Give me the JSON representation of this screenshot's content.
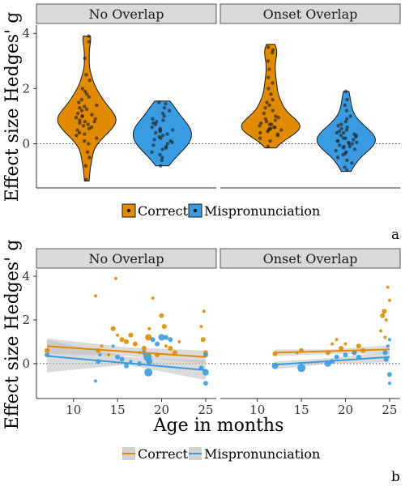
{
  "chart_data": [
    {
      "type": "violin",
      "panel_tag": "a",
      "ylabel": "Effect size Hedges' g",
      "facets": [
        "No Overlap",
        "Onset Overlap"
      ],
      "categories": [
        "Correct",
        "Mispronunciation"
      ],
      "ylim": [
        -1.6,
        4.3
      ],
      "yticks": [
        0,
        2,
        4
      ],
      "reference_line": 0,
      "legend": [
        "Correct",
        "Mispronunciation"
      ],
      "colors": {
        "Correct": "#E08B00",
        "Mispronunciation": "#3B9BE0"
      },
      "series": [
        {
          "facet": "No Overlap",
          "category": "Correct",
          "violin_range": [
            -1.35,
            3.9
          ],
          "points": [
            3.9,
            3.7,
            3.1,
            2.5,
            2.3,
            2.0,
            1.9,
            1.8,
            1.7,
            1.6,
            1.5,
            1.4,
            1.35,
            1.3,
            1.25,
            1.2,
            1.1,
            1.05,
            1.0,
            1.0,
            0.95,
            0.9,
            0.85,
            0.8,
            0.8,
            0.75,
            0.7,
            0.65,
            0.6,
            0.55,
            0.5,
            0.4,
            0.35,
            0.3,
            0.2,
            0.1,
            0.0,
            -0.3,
            -0.5,
            -0.8,
            -1.3
          ]
        },
        {
          "facet": "No Overlap",
          "category": "Mispronunciation",
          "violin_range": [
            -0.8,
            1.55
          ],
          "points": [
            1.5,
            1.45,
            1.3,
            1.2,
            1.1,
            1.0,
            0.9,
            0.85,
            0.8,
            0.75,
            0.7,
            0.6,
            0.55,
            0.5,
            0.5,
            0.45,
            0.4,
            0.35,
            0.3,
            0.25,
            0.2,
            0.15,
            0.1,
            0.05,
            0.0,
            -0.05,
            -0.1,
            -0.15,
            -0.2,
            -0.3,
            -0.4,
            -0.5,
            -0.6,
            -0.8
          ]
        },
        {
          "facet": "Onset Overlap",
          "category": "Correct",
          "violin_range": [
            -0.15,
            3.6
          ],
          "points": [
            3.5,
            3.4,
            3.3,
            3.0,
            2.7,
            2.4,
            2.2,
            2.0,
            1.8,
            1.6,
            1.5,
            1.4,
            1.3,
            1.2,
            1.1,
            1.0,
            0.95,
            0.9,
            0.85,
            0.8,
            0.75,
            0.7,
            0.7,
            0.65,
            0.6,
            0.6,
            0.55,
            0.55,
            0.5,
            0.5,
            0.45,
            0.4,
            0.35,
            0.3,
            0.2,
            0.1,
            -0.1
          ]
        },
        {
          "facet": "Onset Overlap",
          "category": "Mispronunciation",
          "violin_range": [
            -1.0,
            1.9
          ],
          "points": [
            1.9,
            1.6,
            1.4,
            1.2,
            1.0,
            0.9,
            0.8,
            0.7,
            0.65,
            0.6,
            0.55,
            0.5,
            0.45,
            0.4,
            0.4,
            0.35,
            0.3,
            0.3,
            0.25,
            0.2,
            0.2,
            0.15,
            0.1,
            0.1,
            0.05,
            0.05,
            0.0,
            0.0,
            -0.05,
            -0.1,
            -0.1,
            -0.15,
            -0.2,
            -0.25,
            -0.3,
            -0.35,
            -0.4,
            -0.5,
            -0.6,
            -0.7,
            -0.85,
            -0.95
          ]
        }
      ]
    },
    {
      "type": "scatter",
      "panel_tag": "b",
      "xlabel": "Age in months",
      "ylabel": "Effect size Hedges' g",
      "facets": [
        "No Overlap",
        "Onset Overlap"
      ],
      "xlim": [
        5.8,
        26.2
      ],
      "xticks": [
        10,
        15,
        20,
        25
      ],
      "ylim": [
        -1.6,
        4.3
      ],
      "yticks": [
        0,
        2,
        4
      ],
      "reference_line": 0,
      "legend": [
        "Correct",
        "Mispronunciation"
      ],
      "colors": {
        "Correct": "#E08B00",
        "Mispronunciation": "#3B9BE0",
        "ribbon": "#BDBDBD"
      },
      "series": [
        {
          "facet": "No Overlap",
          "name": "Correct",
          "trend": [
            [
              7,
              0.8
            ],
            [
              25,
              0.3
            ]
          ],
          "ribbon": [
            [
              7,
              0.45,
              1.15
            ],
            [
              16,
              0.35,
              0.75
            ],
            [
              25,
              0.0,
              0.6
            ]
          ],
          "points": [
            [
              7,
              0.6,
              3
            ],
            [
              12.5,
              3.1,
              2
            ],
            [
              12.8,
              0.6,
              3
            ],
            [
              13.2,
              0.8,
              2
            ],
            [
              14,
              0.4,
              2
            ],
            [
              14.5,
              1.6,
              3
            ],
            [
              14.8,
              3.9,
              2
            ],
            [
              15,
              1.3,
              2
            ],
            [
              15.5,
              1.1,
              3
            ],
            [
              16,
              1.0,
              3
            ],
            [
              16.5,
              1.3,
              3
            ],
            [
              17,
              0.9,
              3
            ],
            [
              17.5,
              0.5,
              2
            ],
            [
              18,
              0.7,
              3
            ],
            [
              18.5,
              1.2,
              4
            ],
            [
              18.6,
              1.6,
              2
            ],
            [
              19,
              3.0,
              2
            ],
            [
              19.5,
              0.4,
              3
            ],
            [
              20,
              2.2,
              3
            ],
            [
              20.3,
              1.7,
              3
            ],
            [
              20.5,
              0.8,
              2
            ],
            [
              21,
              0.7,
              3
            ],
            [
              21.5,
              0.5,
              3
            ],
            [
              22,
              1.0,
              2
            ],
            [
              24.5,
              1.7,
              2
            ],
            [
              24.7,
              1.1,
              3
            ],
            [
              25,
              0.5,
              3
            ],
            [
              24.8,
              2.4,
              2
            ]
          ]
        },
        {
          "facet": "No Overlap",
          "name": "Mispronunciation",
          "trend": [
            [
              7,
              0.35
            ],
            [
              25,
              -0.3
            ]
          ],
          "ribbon": [
            [
              7,
              -0.4,
              1.1
            ],
            [
              16,
              -0.05,
              0.3
            ],
            [
              25,
              -0.75,
              0.15
            ]
          ],
          "points": [
            [
              7,
              0.4,
              3
            ],
            [
              12.5,
              -0.8,
              2
            ],
            [
              12.8,
              0.1,
              3
            ],
            [
              13,
              0.4,
              2
            ],
            [
              14.5,
              0.8,
              2
            ],
            [
              15,
              0.3,
              3
            ],
            [
              15.5,
              0.2,
              3
            ],
            [
              16,
              -0.1,
              3
            ],
            [
              16.5,
              0.1,
              2
            ],
            [
              17.5,
              0.0,
              3
            ],
            [
              18,
              0.5,
              3
            ],
            [
              18.4,
              0.3,
              5
            ],
            [
              18.5,
              -0.4,
              5
            ],
            [
              18.6,
              0.1,
              4
            ],
            [
              19,
              1.1,
              3
            ],
            [
              19.5,
              0.9,
              3
            ],
            [
              20,
              1.2,
              4
            ],
            [
              20.5,
              1.2,
              3
            ],
            [
              21,
              1.1,
              3
            ],
            [
              24.5,
              -0.2,
              3
            ],
            [
              25,
              -0.4,
              4
            ],
            [
              25,
              0.4,
              3
            ],
            [
              25,
              -0.9,
              3
            ]
          ]
        },
        {
          "facet": "Onset Overlap",
          "name": "Correct",
          "trend": [
            [
              12,
              0.5
            ],
            [
              25,
              0.65
            ]
          ],
          "ribbon": [
            [
              12,
              0.35,
              0.65
            ],
            [
              18.5,
              0.45,
              0.65
            ],
            [
              25,
              0.45,
              0.85
            ]
          ],
          "points": [
            [
              12,
              0.45,
              3
            ],
            [
              14.5,
              0.5,
              2
            ],
            [
              15,
              0.6,
              3
            ],
            [
              18,
              0.5,
              3
            ],
            [
              18.5,
              0.9,
              2
            ],
            [
              19,
              1.1,
              2
            ],
            [
              19.5,
              0.7,
              3
            ],
            [
              20,
              0.9,
              2
            ],
            [
              21,
              0.5,
              3
            ],
            [
              21.5,
              0.8,
              3
            ],
            [
              22,
              0.6,
              3
            ],
            [
              24,
              1.5,
              2
            ],
            [
              24.2,
              2.2,
              3
            ],
            [
              24.4,
              2.4,
              3
            ],
            [
              24.6,
              2.0,
              2
            ],
            [
              24.8,
              3.5,
              2
            ],
            [
              25,
              2.9,
              2
            ],
            [
              24.5,
              1.2,
              2
            ]
          ]
        },
        {
          "facet": "Onset Overlap",
          "name": "Mispronunciation",
          "trend": [
            [
              12,
              -0.05
            ],
            [
              25,
              0.3
            ]
          ],
          "ribbon": [
            [
              12,
              -0.25,
              0.1
            ],
            [
              18.5,
              0.0,
              0.25
            ],
            [
              25,
              0.05,
              0.55
            ]
          ],
          "points": [
            [
              12,
              -0.1,
              4
            ],
            [
              15,
              -0.2,
              5
            ],
            [
              18,
              0.0,
              4
            ],
            [
              18.5,
              0.1,
              3
            ],
            [
              19,
              0.3,
              3
            ],
            [
              20,
              0.4,
              3
            ],
            [
              21,
              0.5,
              3
            ],
            [
              21.5,
              0.3,
              3
            ],
            [
              24.5,
              0.5,
              3
            ],
            [
              24.8,
              0.8,
              2
            ],
            [
              25,
              1.1,
              2
            ],
            [
              25,
              -0.5,
              3
            ],
            [
              25,
              -0.9,
              2
            ],
            [
              24.6,
              0.2,
              3
            ]
          ]
        }
      ]
    }
  ]
}
